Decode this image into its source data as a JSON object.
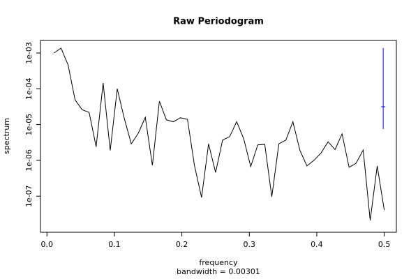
{
  "chart_data": {
    "type": "line",
    "title": "Raw Periodogram",
    "xlabel": "frequency",
    "subtitle": "bandwidth = 0.00301",
    "ylabel": "spectrum",
    "x": [
      0.0104,
      0.0208,
      0.0313,
      0.0417,
      0.0521,
      0.0625,
      0.0729,
      0.0833,
      0.0938,
      0.1042,
      0.1146,
      0.125,
      0.1354,
      0.1458,
      0.1563,
      0.1667,
      0.1771,
      0.1875,
      0.1979,
      0.2083,
      0.2188,
      0.2292,
      0.2396,
      0.25,
      0.2604,
      0.2708,
      0.2813,
      0.2917,
      0.3021,
      0.3125,
      0.3229,
      0.3333,
      0.3438,
      0.3542,
      0.3646,
      0.375,
      0.3854,
      0.3958,
      0.4063,
      0.4167,
      0.4271,
      0.4375,
      0.4479,
      0.4583,
      0.4688,
      0.4792,
      0.4896,
      0.5
    ],
    "series": [
      {
        "name": "spectrum",
        "color": "#000000",
        "values": [
          0.001,
          0.00137,
          0.000467,
          4.9e-05,
          2.6e-05,
          2.2e-05,
          2.4e-06,
          0.000145,
          1.9e-06,
          0.0001,
          1.5e-05,
          2.9e-06,
          5.7e-06,
          1.6e-05,
          7.3e-07,
          4.5e-05,
          1.35e-05,
          1.2e-05,
          1.55e-05,
          1.4e-05,
          7e-07,
          9.2e-08,
          2.9e-06,
          4.6e-07,
          3.7e-06,
          4.6e-06,
          1.2e-05,
          4e-06,
          6.7e-07,
          2.7e-06,
          2.8e-06,
          9.6e-08,
          2.9e-06,
          3.7e-06,
          1.2e-05,
          1.9e-06,
          7e-07,
          1e-06,
          1.6e-06,
          3.3e-06,
          2e-06,
          5.5e-06,
          6.4e-07,
          8.3e-07,
          1.95e-06,
          2.1e-08,
          7e-07,
          4.1e-08
        ]
      }
    ],
    "ci_bar": {
      "x": 0.4985,
      "values": [
        7.5e-06,
        3.15e-05,
        0.00137
      ],
      "color": "#0000ff"
    },
    "xlim": [
      -0.0096,
      0.518
    ],
    "ylim": [
      9.8e-09,
      0.00224
    ],
    "log_y": true,
    "xticks": [
      {
        "value": 0,
        "label": "0.0"
      },
      {
        "value": 0.1,
        "label": "0.1"
      },
      {
        "value": 0.2,
        "label": "0.2"
      },
      {
        "value": 0.3,
        "label": "0.3"
      },
      {
        "value": 0.4,
        "label": "0.4"
      },
      {
        "value": 0.5,
        "label": "0.5"
      }
    ],
    "yticks": [
      {
        "value": 1e-07,
        "label": "1e-07"
      },
      {
        "value": 1e-06,
        "label": "1e-06"
      },
      {
        "value": 1e-05,
        "label": "1e-05"
      },
      {
        "value": 0.0001,
        "label": "1e-04"
      },
      {
        "value": 0.001,
        "label": "1e-03"
      }
    ]
  }
}
